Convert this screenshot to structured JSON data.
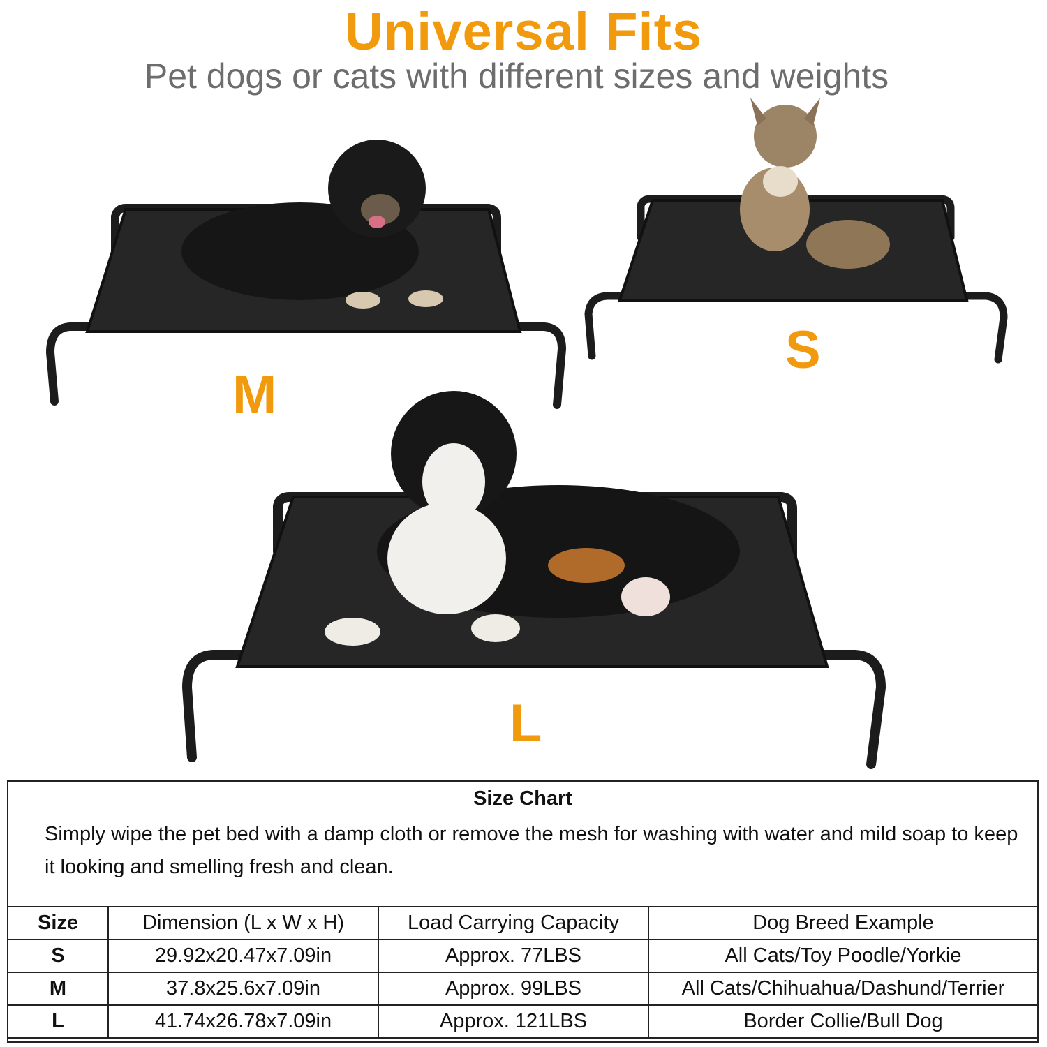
{
  "header": {
    "title": "Universal Fits",
    "subtitle": "Pet dogs or cats with different sizes and weights"
  },
  "colors": {
    "accent": "#f29a0e",
    "subtitle": "#6d6d6d",
    "bed": "#1c1c1c"
  },
  "beds": [
    {
      "label": "M",
      "pet": "fluffy black dog"
    },
    {
      "label": "S",
      "pet": "tabby kitten"
    },
    {
      "label": "L",
      "pet": "tricolor puppy"
    }
  ],
  "size_chart": {
    "title": "Size Chart",
    "description": "Simply wipe the pet bed with a damp cloth or remove the mesh for washing with water and mild soap to keep it looking and smelling fresh and clean.",
    "headers": [
      "Size",
      "Dimension (L x W x H)",
      "Load Carrying Capacity",
      "Dog Breed Example"
    ],
    "rows": [
      [
        "S",
        "29.92x20.47x7.09in",
        "Approx. 77LBS",
        "All Cats/Toy Poodle/Yorkie"
      ],
      [
        "M",
        "37.8x25.6x7.09in",
        "Approx. 99LBS",
        "All Cats/Chihuahua/Dashund/Terrier"
      ],
      [
        "L",
        "41.74x26.78x7.09in",
        "Approx. 121LBS",
        "Border Collie/Bull Dog"
      ]
    ]
  }
}
